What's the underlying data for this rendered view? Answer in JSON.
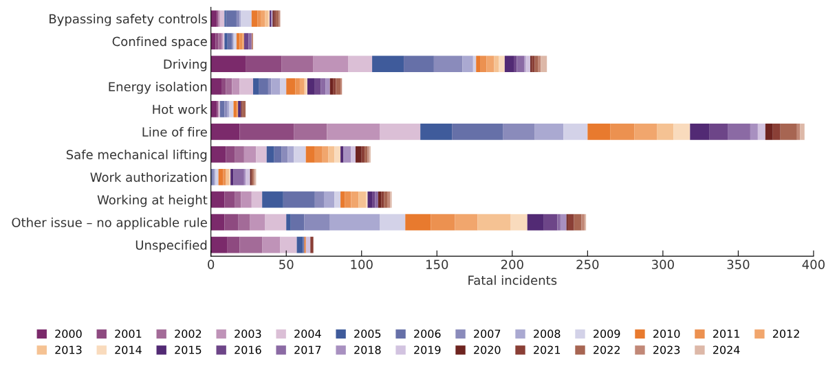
{
  "chart_data": {
    "type": "bar",
    "orientation": "horizontal",
    "stacked": true,
    "xlabel": "Fatal incidents",
    "categories": [
      "Bypassing safety controls",
      "Confined space",
      "Driving",
      "Energy isolation",
      "Hot work",
      "Line of fire",
      "Safe mechanical lifting",
      "Work authorization",
      "Working at height",
      "Other issue – no applicable rule",
      "Unspecified"
    ],
    "xlim": [
      0,
      400
    ],
    "xticks": [
      0,
      50,
      100,
      150,
      200,
      250,
      300,
      350,
      400
    ],
    "grid": false,
    "legend": "bottom",
    "series": [
      {
        "name": "2000",
        "color": "#7b2a6b",
        "values": [
          4,
          3,
          23,
          7,
          4,
          19,
          10,
          0,
          9,
          9,
          11
        ]
      },
      {
        "name": "2001",
        "color": "#8e4a80",
        "values": [
          1,
          2,
          24,
          3,
          1,
          36,
          6,
          0,
          7,
          9,
          8
        ]
      },
      {
        "name": "2002",
        "color": "#a36b98",
        "values": [
          0,
          2,
          21,
          4,
          0,
          22,
          6,
          0,
          4,
          8,
          15
        ]
      },
      {
        "name": "2003",
        "color": "#bf93b8",
        "values": [
          1,
          1,
          23,
          5,
          0,
          35,
          8,
          0,
          7,
          10,
          12
        ]
      },
      {
        "name": "2004",
        "color": "#dbbfd6",
        "values": [
          3,
          1,
          16,
          9,
          1,
          27,
          7,
          0,
          7,
          14,
          11
        ]
      },
      {
        "name": "2005",
        "color": "#3f5b9b",
        "values": [
          1,
          2,
          21,
          4,
          0,
          21,
          5,
          0,
          14,
          3,
          4
        ]
      },
      {
        "name": "2006",
        "color": "#6670a8",
        "values": [
          7,
          3,
          20,
          6,
          3,
          34,
          5,
          1,
          21,
          9,
          1
        ]
      },
      {
        "name": "2007",
        "color": "#8a8bbb",
        "values": [
          2,
          1,
          19,
          2,
          2,
          21,
          4,
          1,
          6,
          17,
          0
        ]
      },
      {
        "name": "2008",
        "color": "#aaa9d1",
        "values": [
          1,
          0,
          7,
          6,
          1,
          19,
          4,
          1,
          7,
          33,
          0
        ]
      },
      {
        "name": "2009",
        "color": "#d3d2e8",
        "values": [
          7,
          2,
          2,
          4,
          3,
          16,
          8,
          2,
          4,
          17,
          0
        ]
      },
      {
        "name": "2010",
        "color": "#e87a2e",
        "values": [
          4,
          2,
          3,
          6,
          2,
          15,
          6,
          3,
          3,
          17,
          1
        ]
      },
      {
        "name": "2011",
        "color": "#ec9150",
        "values": [
          2,
          2,
          4,
          3,
          0,
          16,
          5,
          2,
          4,
          16,
          0
        ]
      },
      {
        "name": "2012",
        "color": "#f1a66d",
        "values": [
          3,
          1,
          5,
          3,
          1,
          15,
          4,
          0,
          5,
          15,
          0
        ]
      },
      {
        "name": "2013",
        "color": "#f5c293",
        "values": [
          2,
          0,
          3,
          1,
          0,
          11,
          4,
          2,
          5,
          22,
          0
        ]
      },
      {
        "name": "2014",
        "color": "#f9dbbd",
        "values": [
          1,
          0,
          4,
          1,
          0,
          11,
          4,
          1,
          1,
          11,
          0
        ]
      },
      {
        "name": "2015",
        "color": "#522a74",
        "values": [
          1,
          0,
          6,
          5,
          2,
          13,
          2,
          2,
          3,
          11,
          0
        ]
      },
      {
        "name": "2016",
        "color": "#6d4588",
        "values": [
          0,
          3,
          2,
          4,
          0,
          12,
          0,
          0,
          2,
          9,
          0
        ]
      },
      {
        "name": "2017",
        "color": "#8b6aa4",
        "values": [
          0,
          2,
          5,
          3,
          0,
          15,
          0,
          7,
          2,
          2,
          0
        ]
      },
      {
        "name": "2018",
        "color": "#a890c0",
        "values": [
          1,
          0,
          1,
          3,
          0,
          5,
          5,
          1,
          0,
          4,
          0
        ]
      },
      {
        "name": "2019",
        "color": "#d2c3e0",
        "values": [
          0,
          0,
          3,
          0,
          0,
          5,
          3,
          3,
          0,
          0,
          3
        ]
      },
      {
        "name": "2020",
        "color": "#6e2420",
        "values": [
          1,
          0,
          1,
          2,
          0,
          5,
          4,
          1,
          2,
          1,
          0
        ]
      },
      {
        "name": "2021",
        "color": "#8a3f36",
        "values": [
          1,
          0,
          2,
          2,
          1,
          5,
          2,
          0,
          2,
          4,
          2
        ]
      },
      {
        "name": "2022",
        "color": "#a76552",
        "values": [
          2,
          0,
          2,
          3,
          2,
          11,
          2,
          1,
          2,
          5,
          0
        ]
      },
      {
        "name": "2023",
        "color": "#c18877",
        "values": [
          1,
          1,
          2,
          1,
          0,
          2,
          1,
          1,
          2,
          2,
          0
        ]
      },
      {
        "name": "2024",
        "color": "#ddb8a8",
        "values": [
          0,
          0,
          4,
          0,
          0,
          3,
          1,
          1,
          1,
          1,
          0
        ]
      }
    ]
  }
}
